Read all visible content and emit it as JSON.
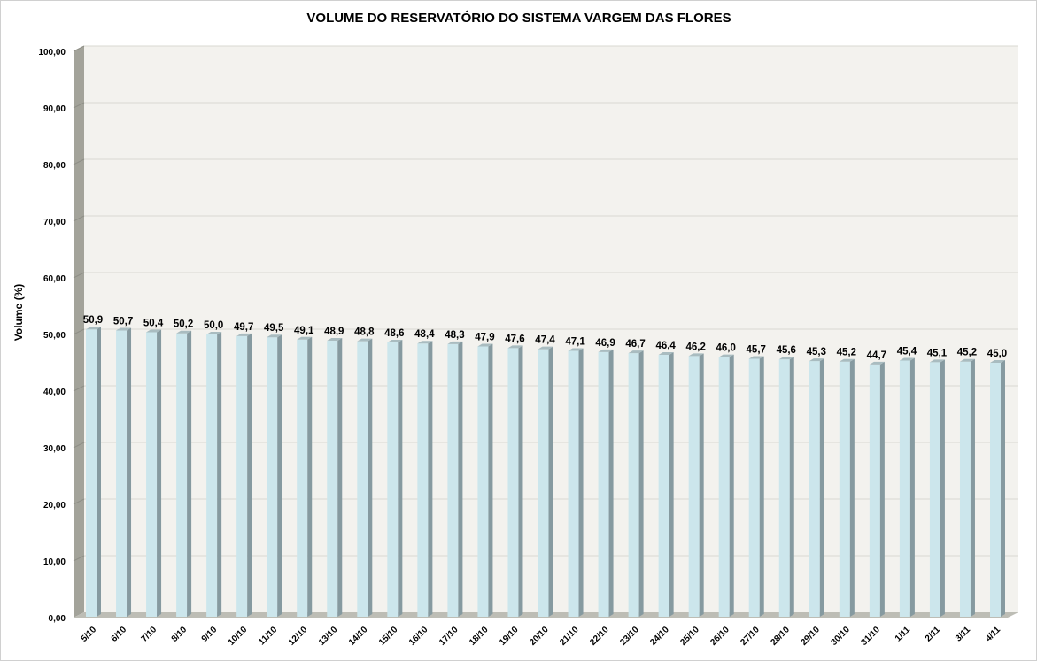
{
  "chart_data": {
    "type": "bar",
    "style": "3d-column",
    "title": "VOLUME DO RESERVATÓRIO DO SISTEMA VARGEM DAS FLORES",
    "xlabel": "",
    "ylabel": "Volume (%)",
    "ylim": [
      0,
      100
    ],
    "yticks": [
      "0,00",
      "10,00",
      "20,00",
      "30,00",
      "40,00",
      "50,00",
      "60,00",
      "70,00",
      "80,00",
      "90,00",
      "100,00"
    ],
    "grid": true,
    "categories": [
      "5/10",
      "6/10",
      "7/10",
      "8/10",
      "9/10",
      "10/10",
      "11/10",
      "12/10",
      "13/10",
      "14/10",
      "15/10",
      "16/10",
      "17/10",
      "18/10",
      "19/10",
      "20/10",
      "21/10",
      "22/10",
      "23/10",
      "24/10",
      "25/10",
      "26/10",
      "27/10",
      "28/10",
      "29/10",
      "30/10",
      "31/10",
      "1/11",
      "2/11",
      "3/11",
      "4/11"
    ],
    "values": [
      50.9,
      50.7,
      50.4,
      50.2,
      50.0,
      49.7,
      49.5,
      49.1,
      48.9,
      48.8,
      48.6,
      48.4,
      48.3,
      47.9,
      47.6,
      47.4,
      47.1,
      46.9,
      46.7,
      46.4,
      46.2,
      46.0,
      45.7,
      45.6,
      45.3,
      45.2,
      44.7,
      45.4,
      45.1,
      45.2,
      45.0
    ],
    "data_labels": [
      "50,9",
      "50,7",
      "50,4",
      "50,2",
      "50,0",
      "49,7",
      "49,5",
      "49,1",
      "48,9",
      "48,8",
      "48,6",
      "48,4",
      "48,3",
      "47,9",
      "47,6",
      "47,4",
      "47,1",
      "46,9",
      "46,7",
      "46,4",
      "46,2",
      "46,0",
      "45,7",
      "45,6",
      "45,3",
      "45,2",
      "44,7",
      "45,4",
      "45,1",
      "45,2",
      "45,0"
    ],
    "colors": {
      "bar_front": "#cce6ec",
      "bar_side": "#869aa0",
      "bar_top": "#a9bcc0",
      "wall": "#f3f2ee",
      "side_wall": "#a3a39a",
      "floor": "#bdbdb5",
      "grid": "#d8d8d2"
    }
  }
}
